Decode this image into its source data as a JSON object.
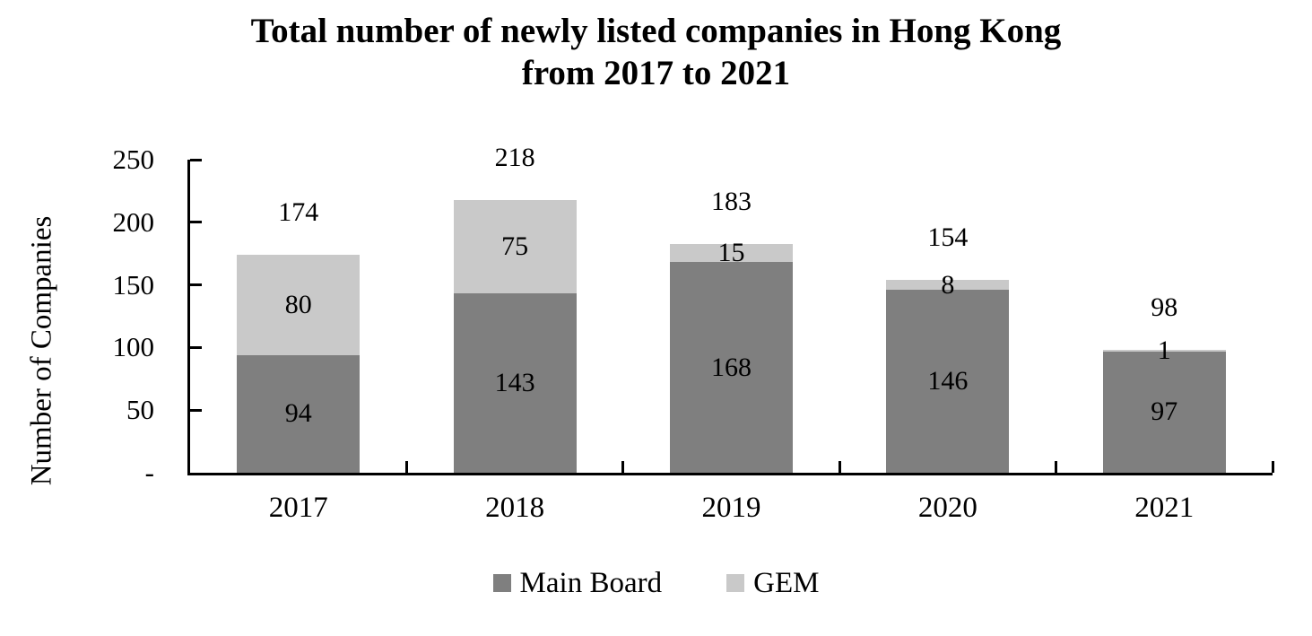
{
  "title": "Total number of newly listed companies in Hong Kong\nfrom 2017 to 2021",
  "chart_data": {
    "type": "bar",
    "stacked": true,
    "title": "Total number of newly listed companies in Hong Kong from 2017 to 2021",
    "ylabel": "Number of Companies",
    "xlabel": "",
    "categories": [
      "2017",
      "2018",
      "2019",
      "2020",
      "2021"
    ],
    "series": [
      {
        "name": "Main Board",
        "color": "#7f7f7f",
        "values": [
          94,
          143,
          168,
          146,
          97
        ]
      },
      {
        "name": "GEM",
        "color": "#c9c9c9",
        "values": [
          80,
          75,
          15,
          8,
          1
        ]
      }
    ],
    "totals": [
      174,
      218,
      183,
      154,
      98
    ],
    "ylim": [
      0,
      250
    ],
    "yticks": [
      {
        "value": 0,
        "label": "-"
      },
      {
        "value": 50,
        "label": "50"
      },
      {
        "value": 100,
        "label": "100"
      },
      {
        "value": 150,
        "label": "150"
      },
      {
        "value": 200,
        "label": "200"
      },
      {
        "value": 250,
        "label": "250"
      }
    ],
    "grid": false,
    "legend_position": "bottom",
    "axis_color": "#000000",
    "text_color": "#000000",
    "background_color": "#ffffff"
  }
}
